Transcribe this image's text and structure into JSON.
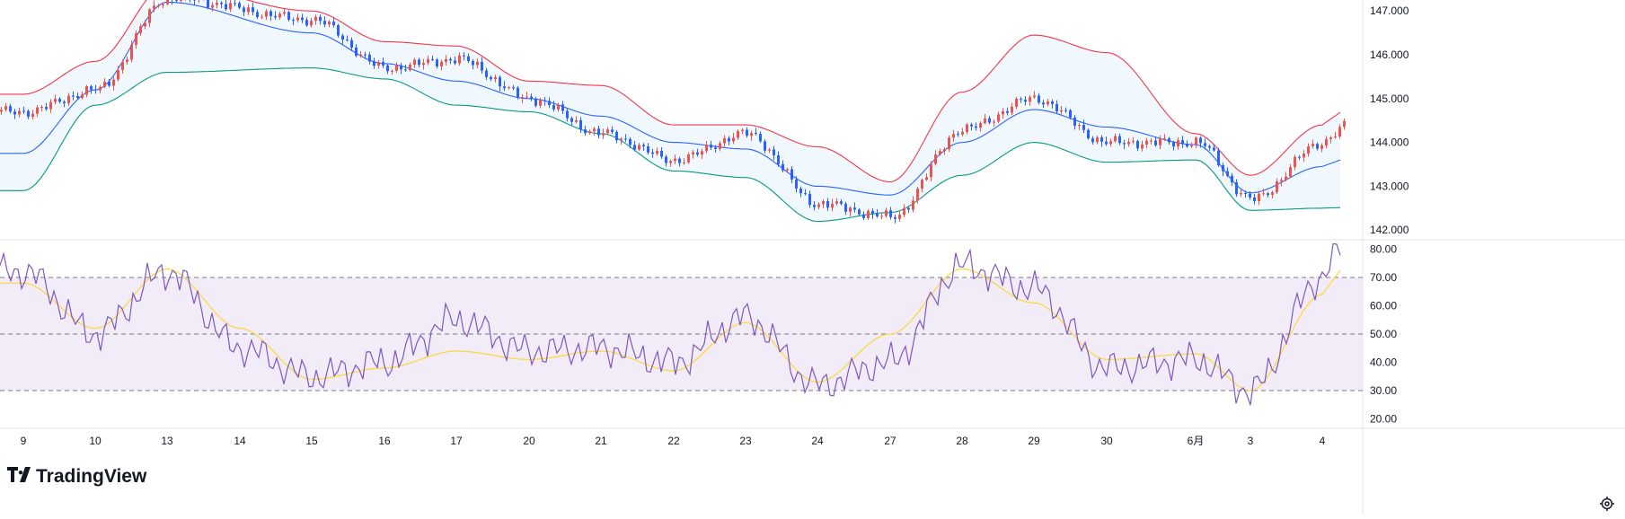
{
  "branding": {
    "logo_text": "TradingView"
  },
  "colors": {
    "up": "#ef5350",
    "down": "#2962ff",
    "upper_band": "#f23645",
    "lower_band": "#089981",
    "basis": "#2962ff",
    "band_fill": "#e3f2fd",
    "rsi": "#7e57c2",
    "rsi_ma": "#fdd835",
    "rsi_zone": "#ede7f6",
    "grid": "#e0e3eb",
    "text": "#131722"
  },
  "chart_data": [
    {
      "type": "candlestick",
      "indicator": "Bollinger Bands",
      "y_ticks": [
        "147.000",
        "146.000",
        "145.000",
        "144.000",
        "143.000",
        "142.000"
      ],
      "ylim": [
        141.8,
        147.25
      ],
      "x_ticks": [
        "9",
        "10",
        "13",
        "14",
        "15",
        "16",
        "17",
        "20",
        "21",
        "22",
        "23",
        "24",
        "27",
        "28",
        "29",
        "30",
        "6月",
        "3",
        "4"
      ],
      "basis_path": [
        {
          "x": "9",
          "y": 143.75
        },
        {
          "x": "10",
          "y": 145.2
        },
        {
          "x": "13",
          "y": 147.2
        },
        {
          "x": "15",
          "y": 146.5
        },
        {
          "x": "16",
          "y": 145.8
        },
        {
          "x": "17",
          "y": 145.4
        },
        {
          "x": "20",
          "y": 145.0
        },
        {
          "x": "21",
          "y": 144.6
        },
        {
          "x": "22",
          "y": 144.0
        },
        {
          "x": "23",
          "y": 143.85
        },
        {
          "x": "24",
          "y": 143.0
        },
        {
          "x": "27",
          "y": 142.8
        },
        {
          "x": "28",
          "y": 144.0
        },
        {
          "x": "29",
          "y": 144.75
        },
        {
          "x": "30",
          "y": 144.35
        },
        {
          "x": "6月",
          "y": 143.95
        },
        {
          "x": "3",
          "y": 142.85
        },
        {
          "x": "4",
          "y": 143.45
        }
      ],
      "upper_path": [
        {
          "x": "9",
          "y": 145.1
        },
        {
          "x": "10",
          "y": 145.85
        },
        {
          "x": "13",
          "y": 147.6
        },
        {
          "x": "15",
          "y": 147.0
        },
        {
          "x": "16",
          "y": 146.3
        },
        {
          "x": "17",
          "y": 146.2
        },
        {
          "x": "20",
          "y": 145.4
        },
        {
          "x": "21",
          "y": 145.3
        },
        {
          "x": "22",
          "y": 144.4
        },
        {
          "x": "23",
          "y": 144.4
        },
        {
          "x": "24",
          "y": 143.9
        },
        {
          "x": "27",
          "y": 143.1
        },
        {
          "x": "28",
          "y": 145.15
        },
        {
          "x": "29",
          "y": 146.45
        },
        {
          "x": "30",
          "y": 146.05
        },
        {
          "x": "6月",
          "y": 144.2
        },
        {
          "x": "3",
          "y": 143.25
        },
        {
          "x": "4",
          "y": 144.4
        }
      ],
      "lower_path": [
        {
          "x": "9",
          "y": 142.9
        },
        {
          "x": "10",
          "y": 144.85
        },
        {
          "x": "13",
          "y": 145.6
        },
        {
          "x": "15",
          "y": 145.7
        },
        {
          "x": "16",
          "y": 145.45
        },
        {
          "x": "17",
          "y": 144.85
        },
        {
          "x": "20",
          "y": 144.7
        },
        {
          "x": "21",
          "y": 144.2
        },
        {
          "x": "22",
          "y": 143.35
        },
        {
          "x": "23",
          "y": 143.2
        },
        {
          "x": "24",
          "y": 142.2
        },
        {
          "x": "27",
          "y": 142.4
        },
        {
          "x": "28",
          "y": 143.25
        },
        {
          "x": "29",
          "y": 144.0
        },
        {
          "x": "30",
          "y": 143.55
        },
        {
          "x": "6月",
          "y": 143.6
        },
        {
          "x": "3",
          "y": 142.45
        },
        {
          "x": "4",
          "y": 142.5
        }
      ],
      "price_path": [
        {
          "x": "9",
          "y": 144.7
        },
        {
          "x": "10",
          "y": 145.2
        },
        {
          "x": "13",
          "y": 147.3
        },
        {
          "x": "15",
          "y": 146.8
        },
        {
          "x": "16",
          "y": 145.7
        },
        {
          "x": "17",
          "y": 145.9
        },
        {
          "x": "20",
          "y": 145.0
        },
        {
          "x": "21",
          "y": 144.2
        },
        {
          "x": "22",
          "y": 143.6
        },
        {
          "x": "23",
          "y": 144.2
        },
        {
          "x": "24",
          "y": 142.6
        },
        {
          "x": "27",
          "y": 142.3
        },
        {
          "x": "28",
          "y": 144.3
        },
        {
          "x": "29",
          "y": 145.0
        },
        {
          "x": "30",
          "y": 144.0
        },
        {
          "x": "6月",
          "y": 144.0
        },
        {
          "x": "3",
          "y": 142.7
        },
        {
          "x": "4",
          "y": 144.0
        }
      ]
    },
    {
      "type": "line",
      "indicator": "RSI",
      "y_ticks": [
        "80.00",
        "70.00",
        "60.00",
        "50.00",
        "40.00",
        "30.00",
        "20.00"
      ],
      "ylim": [
        17,
        83
      ],
      "levels": [
        70,
        50,
        30
      ],
      "rsi_path": [
        {
          "x": "9",
          "y": 72
        },
        {
          "x": "10",
          "y": 50
        },
        {
          "x": "13",
          "y": 72
        },
        {
          "x": "14",
          "y": 45
        },
        {
          "x": "15",
          "y": 35
        },
        {
          "x": "16",
          "y": 40
        },
        {
          "x": "17",
          "y": 55
        },
        {
          "x": "20",
          "y": 44
        },
        {
          "x": "21",
          "y": 45
        },
        {
          "x": "22",
          "y": 40
        },
        {
          "x": "23",
          "y": 56
        },
        {
          "x": "24",
          "y": 32
        },
        {
          "x": "27",
          "y": 40
        },
        {
          "x": "28",
          "y": 74
        },
        {
          "x": "29",
          "y": 66
        },
        {
          "x": "30",
          "y": 38
        },
        {
          "x": "6月",
          "y": 41
        },
        {
          "x": "3",
          "y": 30
        },
        {
          "x": "4",
          "y": 70
        }
      ],
      "ma_path": [
        {
          "x": "9",
          "y": 68
        },
        {
          "x": "10",
          "y": 52
        },
        {
          "x": "13",
          "y": 73
        },
        {
          "x": "14",
          "y": 52
        },
        {
          "x": "15",
          "y": 34
        },
        {
          "x": "16",
          "y": 38
        },
        {
          "x": "17",
          "y": 44
        },
        {
          "x": "20",
          "y": 41
        },
        {
          "x": "21",
          "y": 44
        },
        {
          "x": "22",
          "y": 37
        },
        {
          "x": "23",
          "y": 54
        },
        {
          "x": "24",
          "y": 33
        },
        {
          "x": "27",
          "y": 50
        },
        {
          "x": "28",
          "y": 73
        },
        {
          "x": "29",
          "y": 61
        },
        {
          "x": "30",
          "y": 41
        },
        {
          "x": "6月",
          "y": 43
        },
        {
          "x": "3",
          "y": 30
        },
        {
          "x": "4",
          "y": 64
        }
      ]
    }
  ]
}
